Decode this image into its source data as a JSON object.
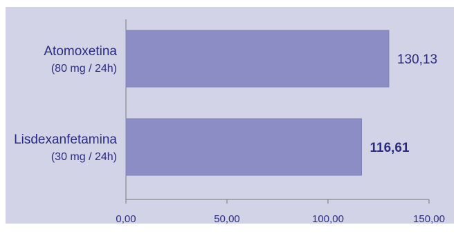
{
  "chart_data": {
    "type": "bar",
    "orientation": "horizontal",
    "categories": [
      {
        "label": "Atomoxetina",
        "sublabel": "(80 mg / 24h)"
      },
      {
        "label": "Lisdexanfetamina",
        "sublabel": "(30 mg / 24h)"
      }
    ],
    "values": [
      130.13,
      116.61
    ],
    "value_labels": [
      "130,13",
      "116,61"
    ],
    "value_label_bold": [
      false,
      true
    ],
    "xlim": [
      0,
      150
    ],
    "xticks": [
      0,
      50,
      100,
      150
    ],
    "xtick_labels": [
      "0,00",
      "50,00",
      "100,00",
      "150,00"
    ],
    "grid": false,
    "title": "",
    "xlabel": "",
    "ylabel": ""
  },
  "colors": {
    "background": "#d3d3e8",
    "bar_fill": "#8b8dc4",
    "bar_stroke": "#7e80ba",
    "axis": "#777777",
    "text": "#2a2a80"
  }
}
